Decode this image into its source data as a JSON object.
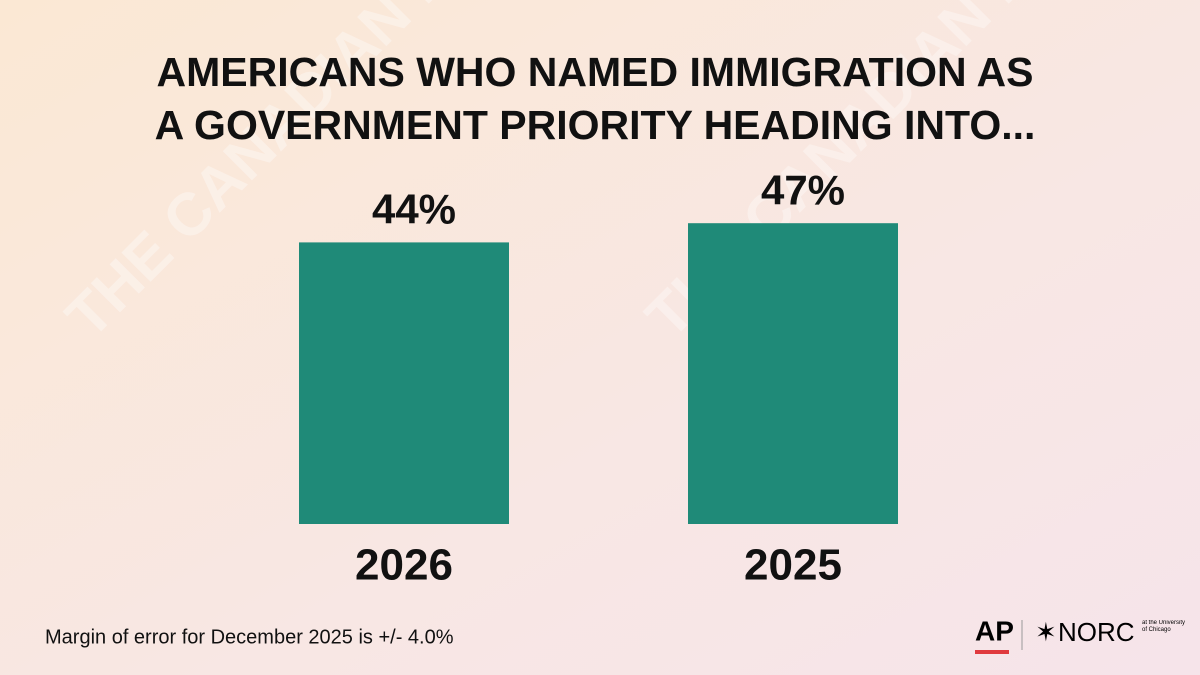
{
  "chart_data": {
    "type": "bar",
    "title": [
      "AMERICANS WHO NAMED IMMIGRATION AS",
      "A GOVERNMENT PRIORITY HEADING INTO..."
    ],
    "categories": [
      "2026",
      "2025"
    ],
    "values": [
      44,
      47
    ],
    "value_labels": [
      "44%",
      "47%"
    ],
    "color": "#1f8a78",
    "note": "Margin of error for December 2025 is +/- 4.0%"
  },
  "watermark": "THE CANADIAN PRESS",
  "logos": {
    "ap": "AP",
    "norc": "NORC",
    "norc_sub": "at the University of Chicago"
  }
}
